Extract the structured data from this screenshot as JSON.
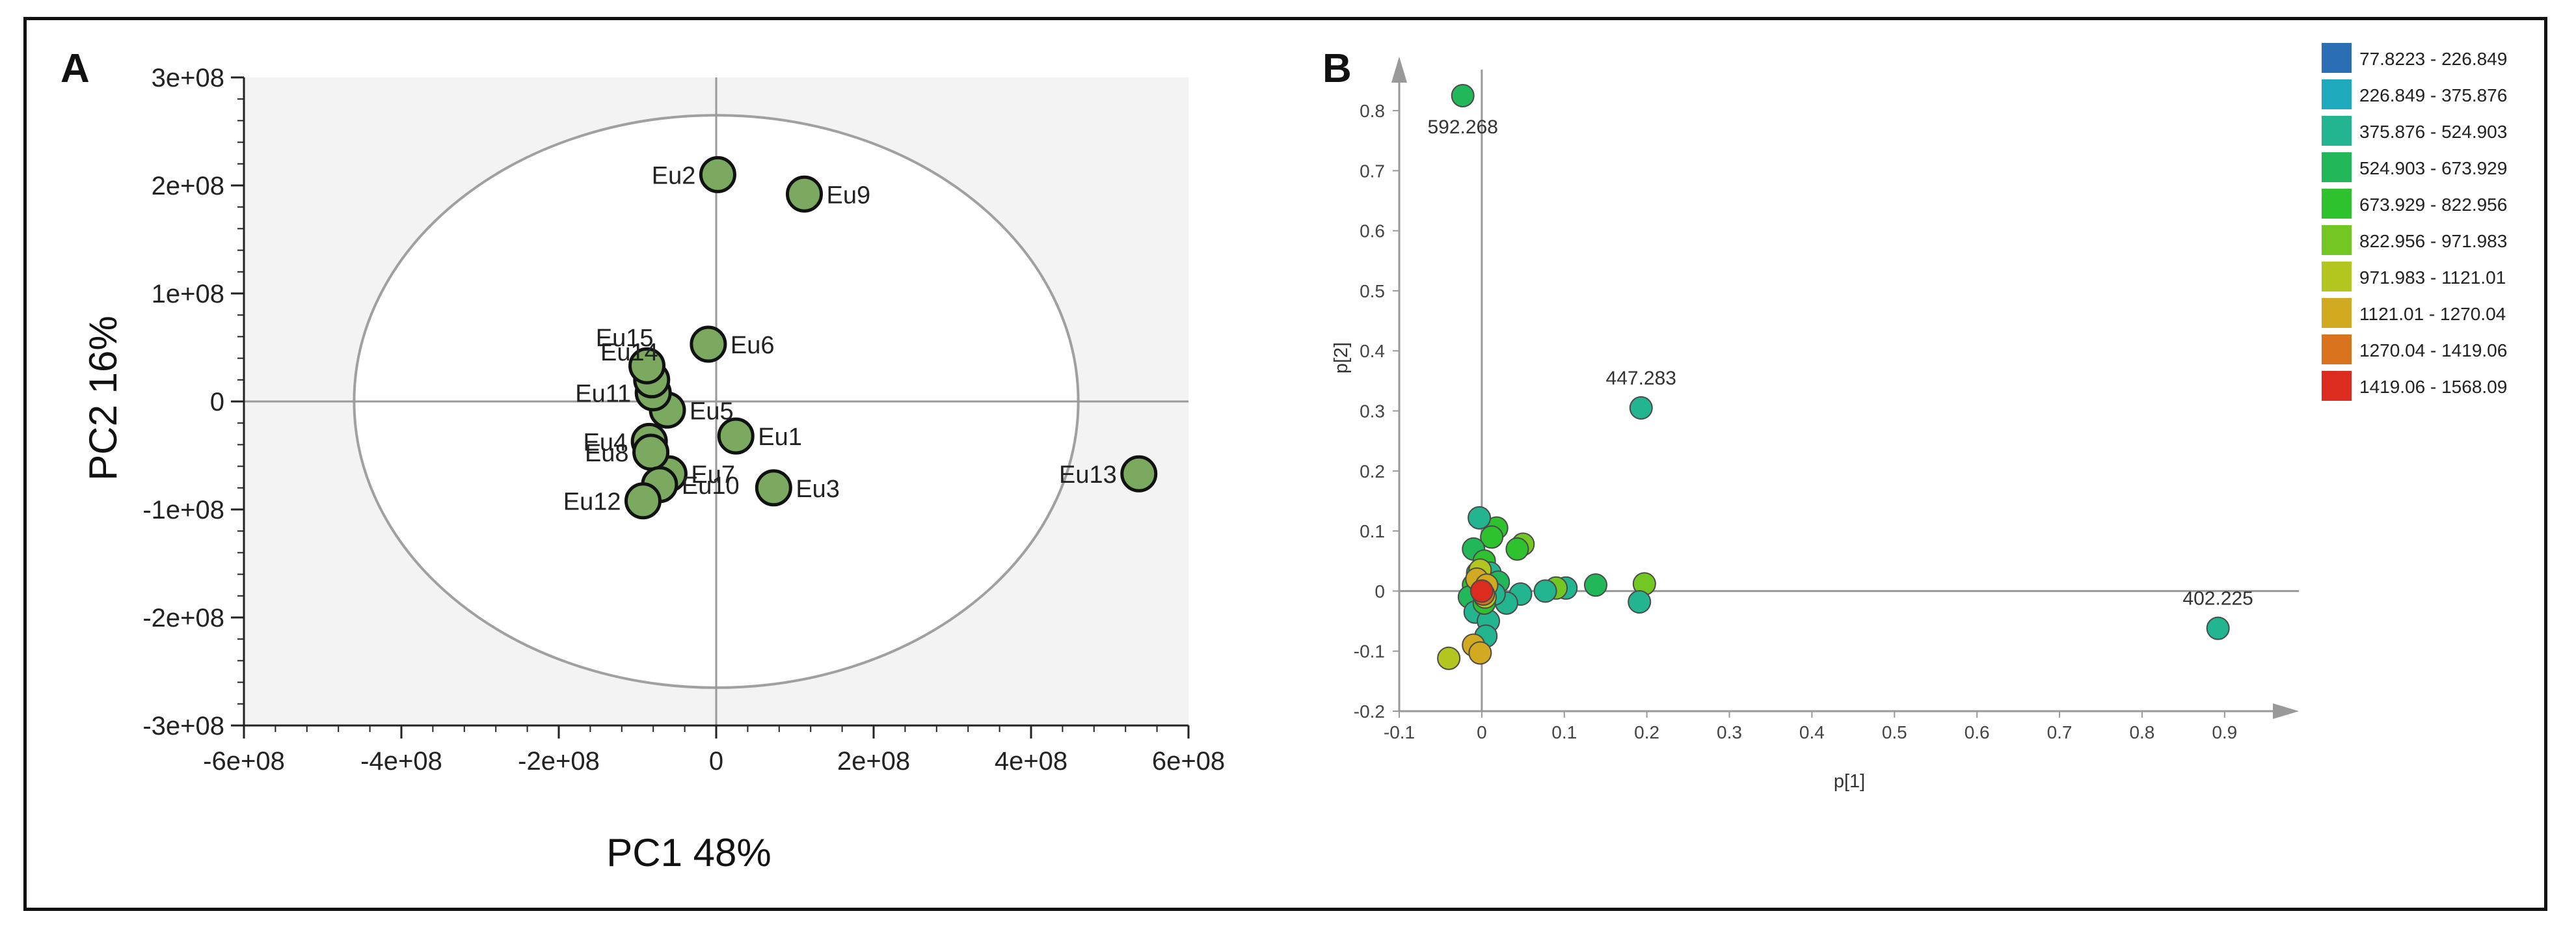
{
  "chart_data": [
    {
      "panel_label": "A",
      "type": "scatter",
      "xlabel": "PC1 48%",
      "ylabel": "PC2 16%",
      "xlim": [
        -600000000,
        600000000
      ],
      "ylim": [
        -300000000,
        300000000
      ],
      "xticks": [
        {
          "value": -600000000,
          "label": "-6e+08"
        },
        {
          "value": -400000000,
          "label": "-4e+08"
        },
        {
          "value": -200000000,
          "label": "-2e+08"
        },
        {
          "value": 0,
          "label": "0"
        },
        {
          "value": 200000000,
          "label": "2e+08"
        },
        {
          "value": 400000000,
          "label": "4e+08"
        },
        {
          "value": 600000000,
          "label": "6e+08"
        }
      ],
      "yticks": [
        {
          "value": 300000000,
          "label": "3e+08"
        },
        {
          "value": 200000000,
          "label": "2e+08"
        },
        {
          "value": 100000000,
          "label": "1e+08"
        },
        {
          "value": 0,
          "label": "0"
        },
        {
          "value": -100000000,
          "label": "-1e+08"
        },
        {
          "value": -200000000,
          "label": "-2e+08"
        },
        {
          "value": -300000000,
          "label": "-3e+08"
        }
      ],
      "ellipse": {
        "center": [
          0,
          0
        ],
        "rx": 460000000,
        "ry": 265000000
      },
      "point_color": "#7aa95f",
      "points": [
        {
          "label": "Eu1",
          "x": 25000000,
          "y": -32000000,
          "label_side": "right"
        },
        {
          "label": "Eu2",
          "x": 2000000,
          "y": 210000000,
          "label_side": "left"
        },
        {
          "label": "Eu3",
          "x": 73000000,
          "y": -80000000,
          "label_side": "right"
        },
        {
          "label": "Eu4",
          "x": -85000000,
          "y": -37000000,
          "label_side": "left"
        },
        {
          "label": "Eu5",
          "x": -62000000,
          "y": -8000000,
          "label_side": "right"
        },
        {
          "label": "Eu6",
          "x": -10000000,
          "y": 53000000,
          "label_side": "right"
        },
        {
          "label": "Eu7",
          "x": -60000000,
          "y": -67000000,
          "label_side": "right"
        },
        {
          "label": "Eu8",
          "x": -83000000,
          "y": -47000000,
          "label_side": "left"
        },
        {
          "label": "Eu9",
          "x": 112000000,
          "y": 192000000,
          "label_side": "right"
        },
        {
          "label": "Eu10",
          "x": -72000000,
          "y": -77000000,
          "label_side": "right"
        },
        {
          "label": "Eu11",
          "x": -80000000,
          "y": 8000000,
          "label_side": "left"
        },
        {
          "label": "Eu12",
          "x": -93000000,
          "y": -92000000,
          "label_side": "left"
        },
        {
          "label": "Eu13",
          "x": 537000000,
          "y": -67000000,
          "label_side": "left"
        },
        {
          "label": "Eu14",
          "x": -82000000,
          "y": 20000000,
          "label_side": "above-left"
        },
        {
          "label": "Eu15",
          "x": -88000000,
          "y": 33000000,
          "label_side": "above-left"
        }
      ]
    },
    {
      "panel_label": "B",
      "type": "scatter",
      "xlabel": "p[1]",
      "ylabel": "p[2]",
      "xlim": [
        -0.1,
        0.99
      ],
      "ylim": [
        -0.2,
        0.89
      ],
      "xticks": [
        {
          "value": -0.1,
          "label": "-0.1"
        },
        {
          "value": 0,
          "label": "0"
        },
        {
          "value": 0.1,
          "label": "0.1"
        },
        {
          "value": 0.2,
          "label": "0.2"
        },
        {
          "value": 0.3,
          "label": "0.3"
        },
        {
          "value": 0.4,
          "label": "0.4"
        },
        {
          "value": 0.5,
          "label": "0.5"
        },
        {
          "value": 0.6,
          "label": "0.6"
        },
        {
          "value": 0.7,
          "label": "0.7"
        },
        {
          "value": 0.8,
          "label": "0.8"
        },
        {
          "value": 0.9,
          "label": "0.9"
        }
      ],
      "yticks": [
        {
          "value": -0.2,
          "label": "-0.2"
        },
        {
          "value": -0.1,
          "label": "-0.1"
        },
        {
          "value": 0,
          "label": "0"
        },
        {
          "value": 0.1,
          "label": "0.1"
        },
        {
          "value": 0.2,
          "label": "0.2"
        },
        {
          "value": 0.3,
          "label": "0.3"
        },
        {
          "value": 0.4,
          "label": "0.4"
        },
        {
          "value": 0.5,
          "label": "0.5"
        },
        {
          "value": 0.6,
          "label": "0.6"
        },
        {
          "value": 0.7,
          "label": "0.7"
        },
        {
          "value": 0.8,
          "label": "0.8"
        }
      ],
      "legend": {
        "placement": "top-right",
        "bins": [
          {
            "label": "77.8223 - 226.849",
            "color": "#2a6fb5"
          },
          {
            "label": "226.849 - 375.876",
            "color": "#1fa9bd"
          },
          {
            "label": "375.876 - 524.903",
            "color": "#22b58f"
          },
          {
            "label": "524.903 - 673.929",
            "color": "#22b85a"
          },
          {
            "label": "673.929 - 822.956",
            "color": "#2ec22e"
          },
          {
            "label": "822.956 - 971.983",
            "color": "#72c723"
          },
          {
            "label": "971.983 - 1121.01",
            "color": "#b3c61f"
          },
          {
            "label": "1121.01 - 1270.04",
            "color": "#d1aa22"
          },
          {
            "label": "1270.04 - 1419.06",
            "color": "#d9731d"
          },
          {
            "label": "1419.06 - 1568.09",
            "color": "#dc2b1f"
          }
        ]
      },
      "labeled_points": [
        {
          "label": "592.268",
          "x": -0.023,
          "y": 0.825,
          "bin": 3
        },
        {
          "label": "447.283",
          "x": 0.193,
          "y": 0.305,
          "bin": 2
        },
        {
          "label": "402.225",
          "x": 0.892,
          "y": -0.062,
          "bin": 2
        }
      ],
      "points": [
        {
          "x": 0.197,
          "y": 0.012,
          "bin": 5
        },
        {
          "x": 0.138,
          "y": 0.01,
          "bin": 3
        },
        {
          "x": 0.191,
          "y": -0.018,
          "bin": 2
        },
        {
          "x": 0.102,
          "y": 0.005,
          "bin": 2
        },
        {
          "x": 0.09,
          "y": 0.005,
          "bin": 5
        },
        {
          "x": 0.077,
          "y": 0.0,
          "bin": 2
        },
        {
          "x": 0.05,
          "y": 0.078,
          "bin": 5
        },
        {
          "x": 0.043,
          "y": 0.07,
          "bin": 4
        },
        {
          "x": 0.047,
          "y": -0.005,
          "bin": 2
        },
        {
          "x": 0.03,
          "y": -0.02,
          "bin": 2
        },
        {
          "x": 0.018,
          "y": 0.105,
          "bin": 4
        },
        {
          "x": 0.012,
          "y": 0.09,
          "bin": 4
        },
        {
          "x": -0.003,
          "y": 0.122,
          "bin": 2
        },
        {
          "x": -0.01,
          "y": 0.07,
          "bin": 3
        },
        {
          "x": 0.003,
          "y": 0.05,
          "bin": 4
        },
        {
          "x": -0.005,
          "y": 0.03,
          "bin": 3
        },
        {
          "x": 0.01,
          "y": 0.03,
          "bin": 2
        },
        {
          "x": 0.02,
          "y": 0.015,
          "bin": 3
        },
        {
          "x": 0.015,
          "y": -0.005,
          "bin": 2
        },
        {
          "x": -0.01,
          "y": 0.01,
          "bin": 4
        },
        {
          "x": -0.015,
          "y": -0.01,
          "bin": 3
        },
        {
          "x": -0.008,
          "y": -0.035,
          "bin": 2
        },
        {
          "x": 0.008,
          "y": -0.05,
          "bin": 2
        },
        {
          "x": 0.005,
          "y": -0.075,
          "bin": 2
        },
        {
          "x": 0.003,
          "y": -0.02,
          "bin": 4
        },
        {
          "x": 0.0,
          "y": 0.015,
          "bin": 5
        },
        {
          "x": -0.002,
          "y": 0.035,
          "bin": 6
        },
        {
          "x": 0.004,
          "y": -0.01,
          "bin": 6
        },
        {
          "x": -0.006,
          "y": 0.02,
          "bin": 7
        },
        {
          "x": 0.006,
          "y": 0.01,
          "bin": 7
        },
        {
          "x": 0.002,
          "y": -0.005,
          "bin": 8
        },
        {
          "x": -0.04,
          "y": -0.112,
          "bin": 6
        },
        {
          "x": -0.01,
          "y": -0.09,
          "bin": 7
        },
        {
          "x": -0.002,
          "y": -0.103,
          "bin": 7
        },
        {
          "x": 0.0,
          "y": 0.0,
          "bin": 9
        }
      ]
    }
  ]
}
